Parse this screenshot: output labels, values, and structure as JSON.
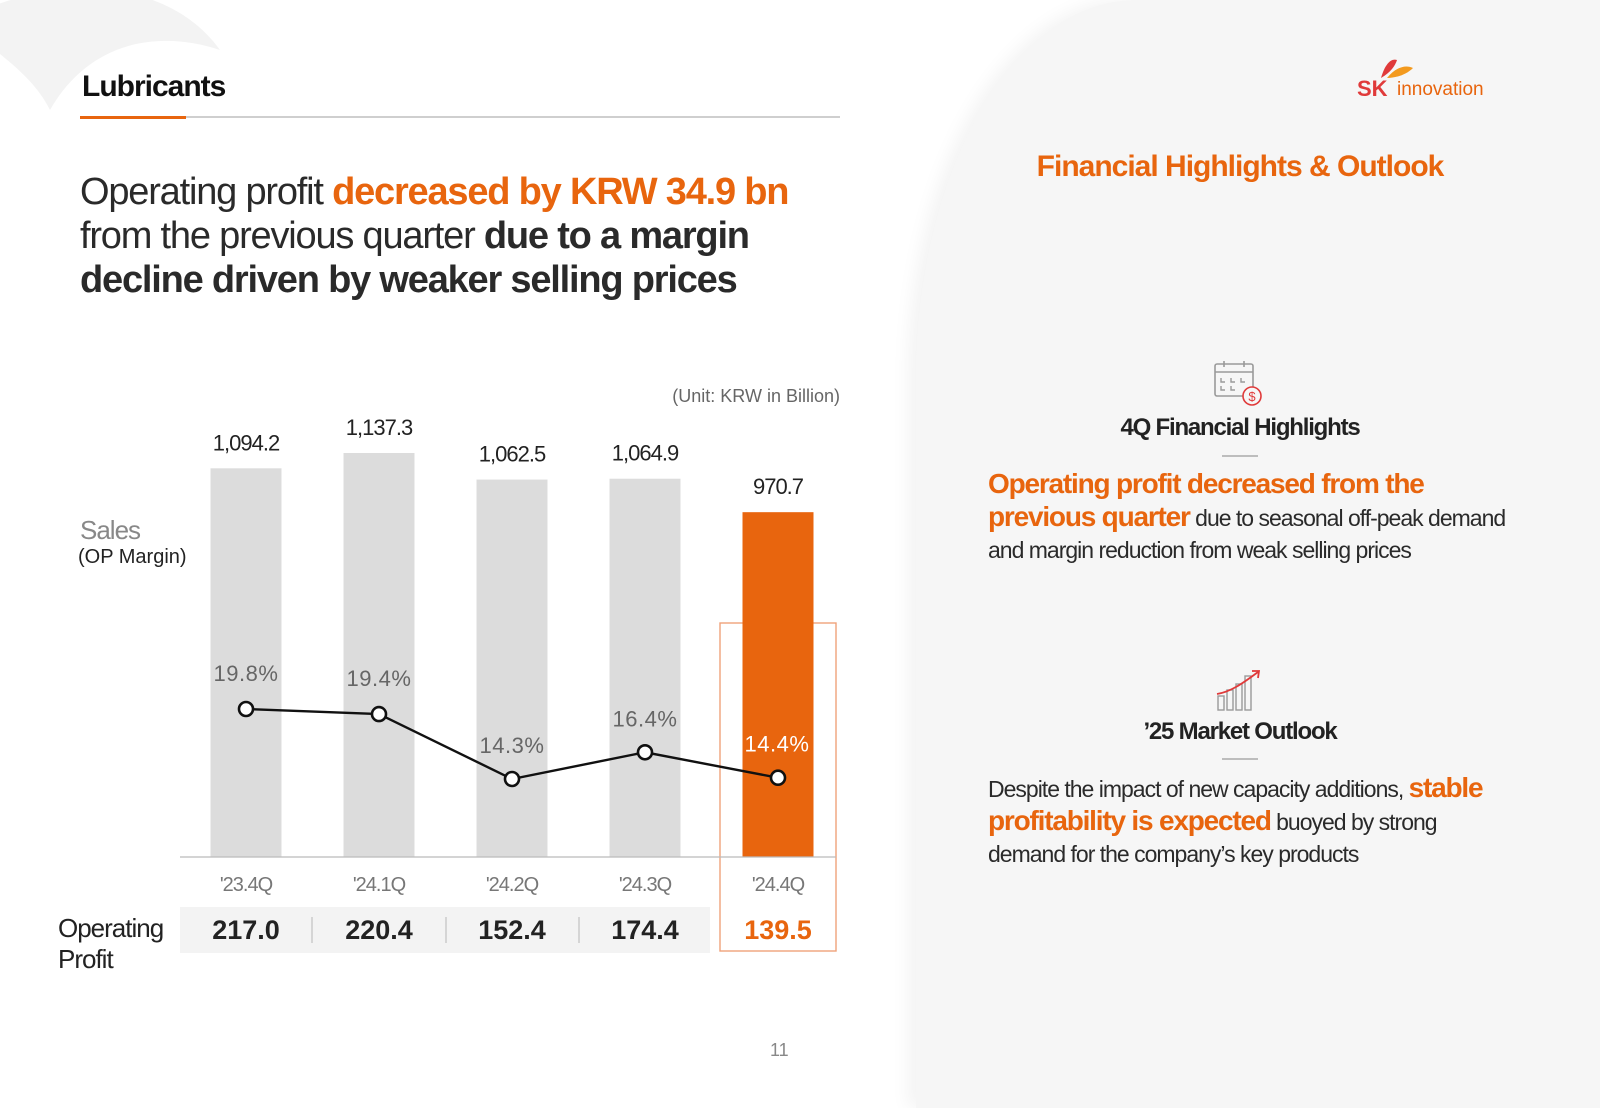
{
  "section_title": "Lubricants",
  "headline": {
    "part1": "Operating profit ",
    "part2_highlight": "decreased by KRW 34.9 bn",
    "part3": "from the previous quarter ",
    "part4_bold": "due to a margin decline driven by weaker selling prices"
  },
  "unit_label": "(Unit: KRW in Billion)",
  "sales_label": "Sales",
  "op_margin_label": "(OP Margin)",
  "operating_profit_label": "Operating Profit",
  "chart_data": {
    "type": "bar",
    "title": "",
    "categories": [
      "'23.4Q",
      "'24.1Q",
      "'24.2Q",
      "'24.3Q",
      "'24.4Q"
    ],
    "series": [
      {
        "name": "Sales",
        "values": [
          1094.2,
          1137.3,
          1062.5,
          1064.9,
          970.7
        ],
        "labels": [
          "1,094.2",
          "1,137.3",
          "1,062.5",
          "1,064.9",
          "970.7"
        ]
      },
      {
        "name": "OP Margin",
        "type": "line",
        "values": [
          19.8,
          19.4,
          14.3,
          16.4,
          14.4
        ],
        "labels": [
          "19.8%",
          "19.4%",
          "14.3%",
          "16.4%",
          "14.4%"
        ]
      }
    ],
    "operating_profit": {
      "values": [
        217.0,
        220.4,
        152.4,
        174.4,
        139.5
      ],
      "labels": [
        "217.0",
        "220.4",
        "152.4",
        "174.4",
        "139.5"
      ]
    },
    "highlight_index": 4,
    "colors": {
      "bar": "#dcdcdc",
      "highlight": "#e8650e",
      "line": "#111111"
    }
  },
  "page_number": "11",
  "logo": {
    "sk": "SK",
    "text": "innovation"
  },
  "panel": {
    "title": "Financial Highlights & Outlook",
    "highlights": {
      "icon": "calendar-dollar-icon",
      "heading": "4Q Financial Highlights",
      "highlight": "Operating profit decreased from the previous quarter",
      "text": " due to seasonal off-peak demand and margin reduction from weak selling prices"
    },
    "outlook": {
      "icon": "growth-chart-icon",
      "heading": "’25 Market Outlook",
      "text1": "Despite the impact of new capacity additions, ",
      "highlight": "stable profitability is expected",
      "text2": " buoyed by strong demand for the company’s key products"
    }
  }
}
